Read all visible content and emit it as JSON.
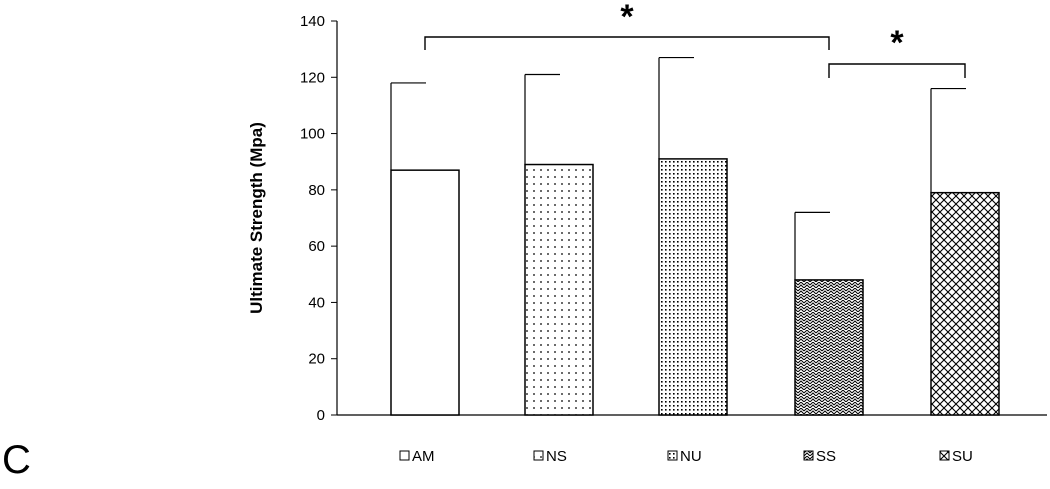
{
  "panel_label": "C",
  "chart_data": {
    "type": "bar",
    "categories": [
      "AM",
      "NS",
      "NU",
      "SS",
      "SU"
    ],
    "values": [
      87,
      89,
      91,
      48,
      79
    ],
    "error_upper": [
      118,
      121,
      127,
      72,
      116
    ],
    "ylabel": "Ultimate Strength (Mpa)",
    "xlabel": "",
    "title": "",
    "ylim": [
      0,
      140
    ],
    "yticks": [
      0,
      20,
      40,
      60,
      80,
      100,
      120,
      140
    ],
    "grid": false,
    "legend_placement": "bottom",
    "patterns": [
      "none",
      "sparse-dots",
      "dense-dots",
      "zigzag",
      "crosshatch"
    ],
    "significance": [
      {
        "from": "AM",
        "to": "SS",
        "label": "*"
      },
      {
        "from": "SS",
        "to": "SU",
        "label": "*"
      }
    ]
  },
  "colors": {
    "axis": "#000000",
    "bar_fill": "#ffffff",
    "bar_stroke": "#000000"
  }
}
